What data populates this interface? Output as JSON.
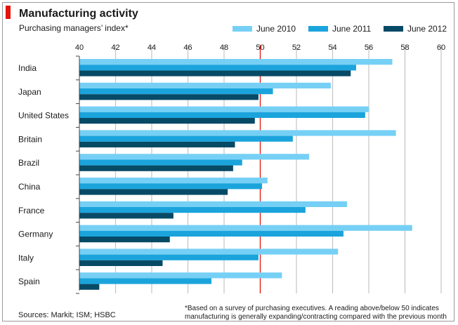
{
  "chart_data": {
    "type": "bar",
    "orientation": "horizontal",
    "title": "Manufacturing activity",
    "subtitle": "Purchasing managers’ index*",
    "categories": [
      "India",
      "Japan",
      "United States",
      "Britain",
      "Brazil",
      "China",
      "France",
      "Germany",
      "Italy",
      "Spain"
    ],
    "series": [
      {
        "name": "June 2010",
        "color": "#76d0f5",
        "values": [
          57.3,
          53.9,
          56.0,
          57.5,
          52.7,
          50.4,
          54.8,
          58.4,
          54.3,
          51.2
        ]
      },
      {
        "name": "June 2011",
        "color": "#1ba4dc",
        "values": [
          55.3,
          50.7,
          55.8,
          51.8,
          49.0,
          50.1,
          52.5,
          54.6,
          49.9,
          47.3
        ]
      },
      {
        "name": "June 2012",
        "color": "#074a66",
        "values": [
          55.0,
          49.9,
          49.7,
          48.6,
          48.5,
          48.2,
          45.2,
          45.0,
          44.6,
          41.1
        ]
      }
    ],
    "xlim": [
      40,
      60
    ],
    "xticks": [
      "40",
      "42",
      "44",
      "46",
      "48",
      "50",
      "52",
      "54",
      "56",
      "58",
      "60"
    ],
    "reference_line": {
      "value": 50,
      "color": "#e3120b"
    },
    "grid": true,
    "legend_position": "top-right"
  },
  "footer": {
    "source": "Sources: Markit; ISM; HSBC",
    "note": "*Based on a survey of purchasing executives. A reading above/below 50 indicates\nmanufacturing is generally expanding/contracting compared with the previous month"
  },
  "colors": {
    "accent": "#e3120b",
    "grid": "#c4c4c4"
  }
}
